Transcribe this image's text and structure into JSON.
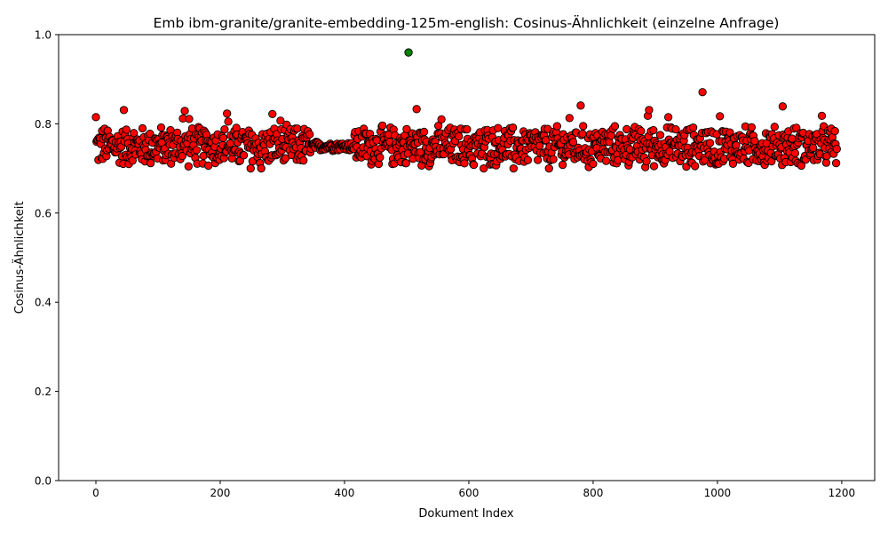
{
  "chart_data": {
    "type": "scatter",
    "title": "Emb ibm-granite/granite-embedding-125m-english: Cosinus-Ähnlichkeit (einzelne Anfrage)",
    "xlabel": "Dokument Index",
    "ylabel": "Cosinus-Ähnlichkeit",
    "xlim": [
      -60,
      1253
    ],
    "ylim": [
      0.0,
      1.0
    ],
    "xticks": [
      0,
      200,
      400,
      600,
      800,
      1000,
      1200
    ],
    "yticks": [
      0.0,
      0.2,
      0.4,
      0.6,
      0.8,
      1.0
    ],
    "x_tick_labels": [
      "0",
      "200",
      "400",
      "600",
      "800",
      "1000",
      "1200"
    ],
    "y_tick_labels": [
      "0.0",
      "0.2",
      "0.4",
      "0.6",
      "0.8",
      "1.0"
    ],
    "grid": false,
    "n_points": 1193,
    "colors": {
      "default": "#ff0000",
      "highlight": "#008000",
      "edge": "#000000"
    },
    "highlight": {
      "x": 503,
      "y": 0.96
    },
    "approximate_band": {
      "typical_low": 0.7,
      "typical_high": 0.8,
      "center": 0.75
    },
    "outliers": [
      {
        "x": 0,
        "y": 0.815
      },
      {
        "x": 45,
        "y": 0.831
      },
      {
        "x": 143,
        "y": 0.829
      },
      {
        "x": 140,
        "y": 0.812
      },
      {
        "x": 150,
        "y": 0.811
      },
      {
        "x": 211,
        "y": 0.823
      },
      {
        "x": 213,
        "y": 0.805
      },
      {
        "x": 284,
        "y": 0.822
      },
      {
        "x": 297,
        "y": 0.807
      },
      {
        "x": 516,
        "y": 0.833
      },
      {
        "x": 556,
        "y": 0.81
      },
      {
        "x": 762,
        "y": 0.813
      },
      {
        "x": 780,
        "y": 0.841
      },
      {
        "x": 890,
        "y": 0.831
      },
      {
        "x": 888,
        "y": 0.818
      },
      {
        "x": 921,
        "y": 0.815
      },
      {
        "x": 976,
        "y": 0.871
      },
      {
        "x": 1004,
        "y": 0.817
      },
      {
        "x": 1076,
        "y": 0.813
      },
      {
        "x": 1105,
        "y": 0.839
      },
      {
        "x": 1168,
        "y": 0.818
      },
      {
        "x": 266,
        "y": 0.7
      },
      {
        "x": 249,
        "y": 0.7
      },
      {
        "x": 624,
        "y": 0.7
      },
      {
        "x": 672,
        "y": 0.7
      },
      {
        "x": 729,
        "y": 0.7
      },
      {
        "x": 793,
        "y": 0.703
      },
      {
        "x": 884,
        "y": 0.703
      },
      {
        "x": 950,
        "y": 0.704
      },
      {
        "x": 1076,
        "y": 0.708
      },
      {
        "x": 997,
        "y": 0.709
      },
      {
        "x": 751,
        "y": 0.708
      },
      {
        "x": 608,
        "y": 0.708
      }
    ]
  }
}
